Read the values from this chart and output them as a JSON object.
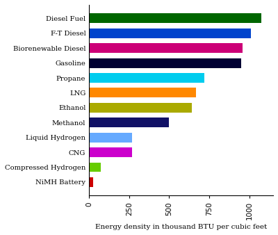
{
  "categories": [
    "Diesel Fuel",
    "F-T Diesel",
    "Biorenewable Diesel",
    "Gasoline",
    "Propane",
    "LNG",
    "Ethanol",
    "Methanol",
    "Liquid Hydrogen",
    "CNG",
    "Compressed Hydrogen",
    "NiMH Battery"
  ],
  "values": [
    1075,
    1010,
    960,
    950,
    720,
    670,
    640,
    500,
    270,
    270,
    75,
    25
  ],
  "colors": [
    "#006600",
    "#0044cc",
    "#cc0077",
    "#000033",
    "#00ccee",
    "#ff8800",
    "#aaaa00",
    "#111166",
    "#66aaff",
    "#cc00cc",
    "#66cc00",
    "#cc0000"
  ],
  "xlabel": "Energy density in thousand BTU per cubic feet",
  "xlim": [
    0,
    1150
  ],
  "xticks": [
    0,
    250,
    500,
    750,
    1000
  ],
  "background_color": "#ffffff",
  "bar_height": 0.65
}
